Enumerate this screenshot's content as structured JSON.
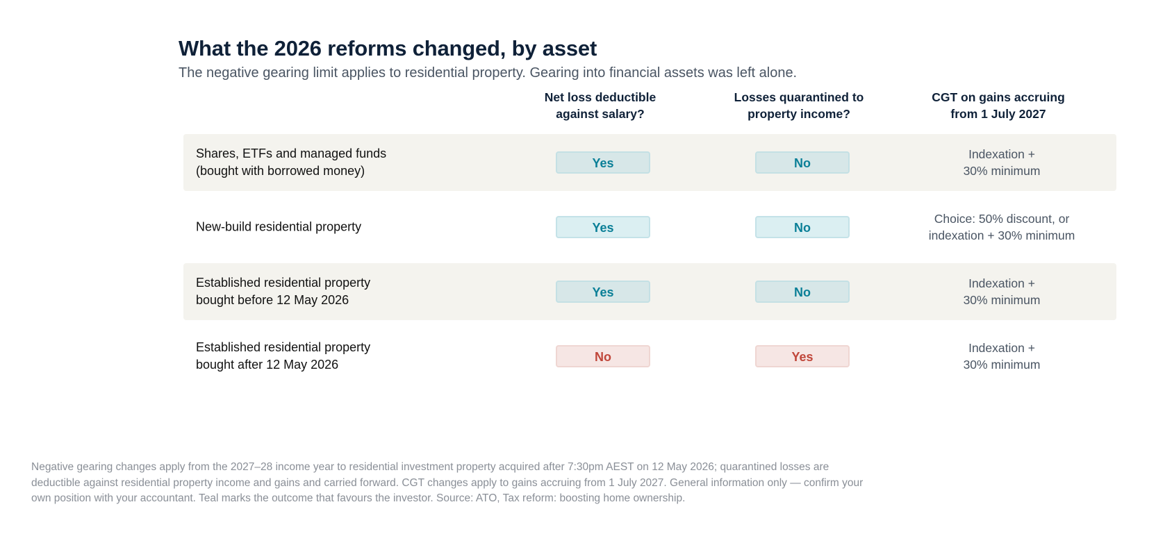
{
  "header": {
    "title": "What the 2026 reforms changed, by asset",
    "subtitle": "The negative gearing limit applies to residential property. Gearing into financial assets was left alone."
  },
  "columns": [
    {
      "label_line1": "Net loss deductible",
      "label_line2": "against salary?"
    },
    {
      "label_line1": "Losses quarantined to",
      "label_line2": "property income?"
    },
    {
      "label_line1": "CGT on gains accruing",
      "label_line2": "from 1 July 2027"
    }
  ],
  "rows": [
    {
      "asset_line1": "Shares, ETFs and managed funds",
      "asset_line2": "(bought with borrowed money)",
      "deductible": "Yes",
      "deductible_status": "good",
      "quarantined": "No",
      "quarantined_status": "good",
      "cgt_line1": "Indexation +",
      "cgt_line2": "30% minimum"
    },
    {
      "asset_line1": "New-build residential property",
      "asset_line2": "",
      "deductible": "Yes",
      "deductible_status": "good",
      "quarantined": "No",
      "quarantined_status": "good",
      "cgt_line1": "Choice: 50% discount, or",
      "cgt_line2": "indexation + 30% minimum"
    },
    {
      "asset_line1": "Established residential property",
      "asset_line2": "bought before 12 May 2026",
      "deductible": "Yes",
      "deductible_status": "good",
      "quarantined": "No",
      "quarantined_status": "good",
      "cgt_line1": "Indexation +",
      "cgt_line2": "30% minimum"
    },
    {
      "asset_line1": "Established residential property",
      "asset_line2": "bought after 12 May 2026",
      "deductible": "No",
      "deductible_status": "bad",
      "quarantined": "Yes",
      "quarantined_status": "bad",
      "cgt_line1": "Indexation +",
      "cgt_line2": "30% minimum"
    }
  ],
  "footnote": "Negative gearing changes apply from the 2027–28 income year to residential investment property acquired after 7:30pm AEST on 12 May 2026; quarantined losses are deductible against residential property income and gains and carried forward. CGT changes apply to gains accruing from 1 July 2027. General information only — confirm your own position with your accountant. Teal marks the outcome that favours the investor. Source: ATO, Tax reform: boosting home ownership.",
  "colors": {
    "favourable": "#0a7f97",
    "unfavourable": "#c0463a",
    "row_shade": "#f4f3ee"
  }
}
